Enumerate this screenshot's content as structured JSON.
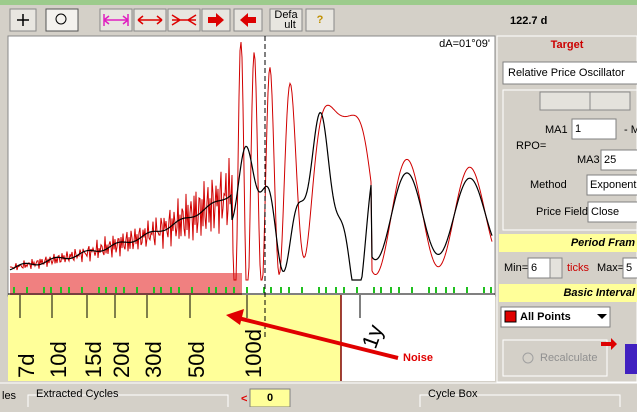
{
  "toolbar": {
    "default_button": [
      "Defa",
      "ult"
    ],
    "help_button": "?",
    "readout": "122.7 d"
  },
  "chart": {
    "angle": "dA=01°09'",
    "period_labels": [
      "7d",
      "10d",
      "15d",
      "20d",
      "30d",
      "50d",
      "100d"
    ],
    "year_label": "1y",
    "annotation": "Noise"
  },
  "panel": {
    "title": "Target",
    "indicator": "Relative Price Oscillator",
    "ma1_label": "MA1",
    "ma1_value": "1",
    "ma1_suffix": "- M",
    "rpo_label": "RPO=",
    "ma3_label": "MA3",
    "ma3_value": "25",
    "method_label": "Method",
    "method_value": "Exponent",
    "price_field_label": "Price Field",
    "price_field_value": "Close",
    "period_frame": "Period Fram",
    "min_label": "Min=",
    "min_value": "6",
    "ticks_label": "ticks",
    "max_label": "Max=",
    "max_value": "5",
    "basic_interval": "Basic Interval",
    "interval_value": "All Points",
    "recalculate": "Recalculate"
  },
  "bottom": {
    "side_label": "les",
    "extracted_cycles": "Extracted Cycles",
    "prev": "<",
    "counter": "0",
    "cycle_box": "Cycle Box"
  }
}
